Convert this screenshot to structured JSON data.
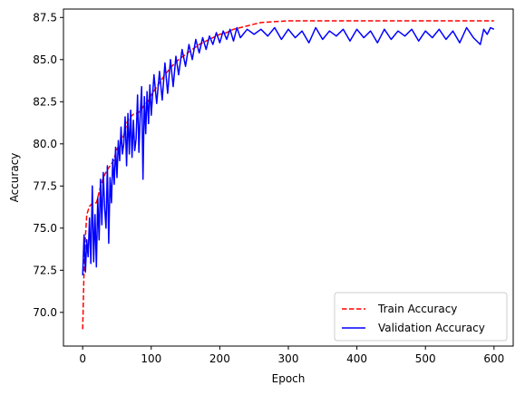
{
  "chart_data": {
    "type": "line",
    "xlabel": "Epoch",
    "ylabel": "Accuracy",
    "xlim": [
      -28,
      628
    ],
    "ylim": [
      68.0,
      88.0
    ],
    "x_ticks": [
      0,
      100,
      200,
      300,
      400,
      500,
      600
    ],
    "y_ticks": [
      70.0,
      72.5,
      75.0,
      77.5,
      80.0,
      82.5,
      85.0,
      87.5
    ],
    "grid": false,
    "legend_position": "lower-right",
    "series": [
      {
        "name": "Train Accuracy",
        "color": "#ff0000",
        "style": "dashed",
        "x": [
          0,
          2,
          4,
          6,
          10,
          15,
          20,
          25,
          30,
          35,
          40,
          45,
          50,
          55,
          60,
          65,
          70,
          75,
          80,
          85,
          90,
          95,
          100,
          110,
          120,
          130,
          140,
          150,
          160,
          170,
          180,
          190,
          200,
          210,
          220,
          230,
          240,
          250,
          260,
          280,
          300,
          320,
          350,
          400,
          450,
          500,
          550,
          600
        ],
        "values": [
          69.0,
          72.5,
          74.5,
          75.8,
          76.3,
          76.5,
          76.5,
          77.3,
          78.0,
          78.4,
          78.7,
          79.0,
          79.7,
          80.0,
          80.5,
          81.3,
          81.6,
          81.8,
          81.8,
          82.0,
          82.3,
          82.5,
          82.9,
          83.5,
          84.1,
          84.6,
          85.0,
          85.3,
          85.6,
          85.9,
          86.1,
          86.3,
          86.5,
          86.6,
          86.8,
          86.9,
          87.0,
          87.1,
          87.2,
          87.25,
          87.3,
          87.3,
          87.3,
          87.3,
          87.3,
          87.3,
          87.3,
          87.3
        ]
      },
      {
        "name": "Validation Accuracy",
        "color": "#0000ff",
        "style": "solid",
        "x": [
          0,
          2,
          4,
          6,
          8,
          10,
          12,
          14,
          16,
          18,
          20,
          22,
          24,
          26,
          28,
          30,
          32,
          34,
          36,
          38,
          40,
          42,
          44,
          46,
          48,
          50,
          52,
          54,
          56,
          58,
          60,
          62,
          64,
          66,
          68,
          70,
          72,
          74,
          76,
          78,
          80,
          82,
          84,
          86,
          88,
          90,
          92,
          94,
          96,
          98,
          100,
          104,
          108,
          112,
          116,
          120,
          124,
          128,
          132,
          136,
          140,
          145,
          150,
          155,
          160,
          165,
          170,
          175,
          180,
          185,
          190,
          195,
          200,
          205,
          210,
          215,
          220,
          225,
          230,
          240,
          250,
          260,
          270,
          280,
          290,
          300,
          310,
          320,
          330,
          340,
          350,
          360,
          370,
          380,
          390,
          400,
          410,
          420,
          430,
          440,
          450,
          460,
          470,
          480,
          490,
          500,
          510,
          520,
          530,
          540,
          550,
          560,
          570,
          580,
          585,
          590,
          595,
          600
        ],
        "values": [
          72.2,
          74.6,
          72.4,
          74.3,
          73.3,
          75.6,
          72.9,
          77.5,
          73.0,
          75.8,
          72.7,
          76.8,
          74.3,
          77.9,
          75.2,
          78.3,
          76.2,
          75.0,
          78.7,
          74.1,
          78.0,
          76.5,
          79.1,
          77.6,
          79.8,
          78.0,
          80.2,
          79.0,
          81.0,
          79.4,
          80.0,
          81.6,
          78.7,
          81.8,
          79.4,
          82.0,
          79.2,
          81.4,
          79.6,
          80.3,
          82.9,
          79.5,
          81.8,
          83.4,
          77.9,
          82.8,
          80.6,
          83.1,
          81.2,
          83.5,
          81.7,
          84.1,
          82.4,
          84.3,
          82.6,
          84.8,
          83.0,
          85.0,
          83.4,
          85.2,
          84.1,
          85.6,
          84.6,
          85.9,
          85.0,
          86.2,
          85.4,
          86.3,
          85.6,
          86.4,
          85.9,
          86.6,
          86.0,
          86.7,
          86.2,
          86.8,
          86.1,
          86.9,
          86.3,
          86.8,
          86.5,
          86.8,
          86.4,
          86.9,
          86.2,
          86.8,
          86.3,
          86.7,
          86.0,
          86.9,
          86.2,
          86.7,
          86.4,
          86.8,
          86.1,
          86.8,
          86.3,
          86.7,
          86.0,
          86.8,
          86.2,
          86.7,
          86.4,
          86.8,
          86.1,
          86.7,
          86.3,
          86.8,
          86.2,
          86.7,
          86.0,
          86.9,
          86.3,
          85.9,
          86.8,
          86.5,
          86.9,
          86.8
        ]
      }
    ]
  }
}
